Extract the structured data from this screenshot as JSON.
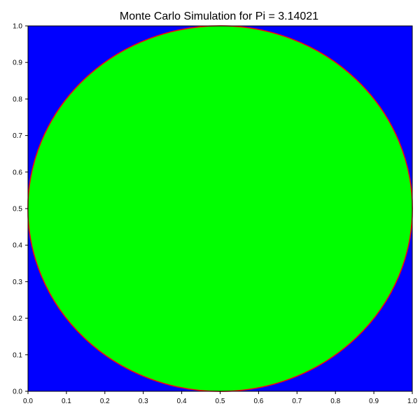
{
  "chart_data": {
    "type": "scatter",
    "title": "Monte Carlo Simulation for Pi = 3.14021",
    "xlabel": "",
    "ylabel": "",
    "xlim": [
      0.0,
      1.0
    ],
    "ylim": [
      0.0,
      1.0
    ],
    "grid": false,
    "legend": "none",
    "x_ticks": [
      "0.0",
      "0.1",
      "0.2",
      "0.3",
      "0.4",
      "0.5",
      "0.6",
      "0.7",
      "0.8",
      "0.9",
      "1.0"
    ],
    "y_ticks": [
      "0.0",
      "0.1",
      "0.2",
      "0.3",
      "0.4",
      "0.5",
      "0.6",
      "0.7",
      "0.8",
      "0.9",
      "1.0"
    ],
    "pi_estimate": 3.14021,
    "boundary_circle": {
      "center": [
        0.5,
        0.5
      ],
      "radius": 0.5
    },
    "series": [
      {
        "region": "outside circle",
        "color": "#0000ff"
      },
      {
        "region": "inside circle",
        "color": "#00ff00"
      },
      {
        "region": "circle boundary",
        "color": "#ff0000"
      }
    ]
  }
}
